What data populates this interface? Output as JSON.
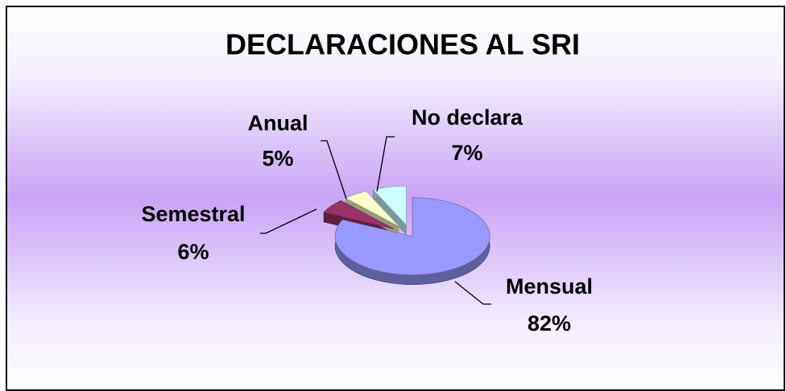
{
  "chart_data": {
    "type": "pie",
    "title": "DECLARACIONES AL SRI",
    "categories": [
      "Mensual",
      "Semestral",
      "Anual",
      "No declara"
    ],
    "values": [
      82,
      6,
      5,
      7
    ],
    "value_labels": [
      "82%",
      "6%",
      "5%",
      "7%"
    ],
    "colors": [
      "#9999ff",
      "#993366",
      "#ffffcc",
      "#ccffff"
    ]
  }
}
